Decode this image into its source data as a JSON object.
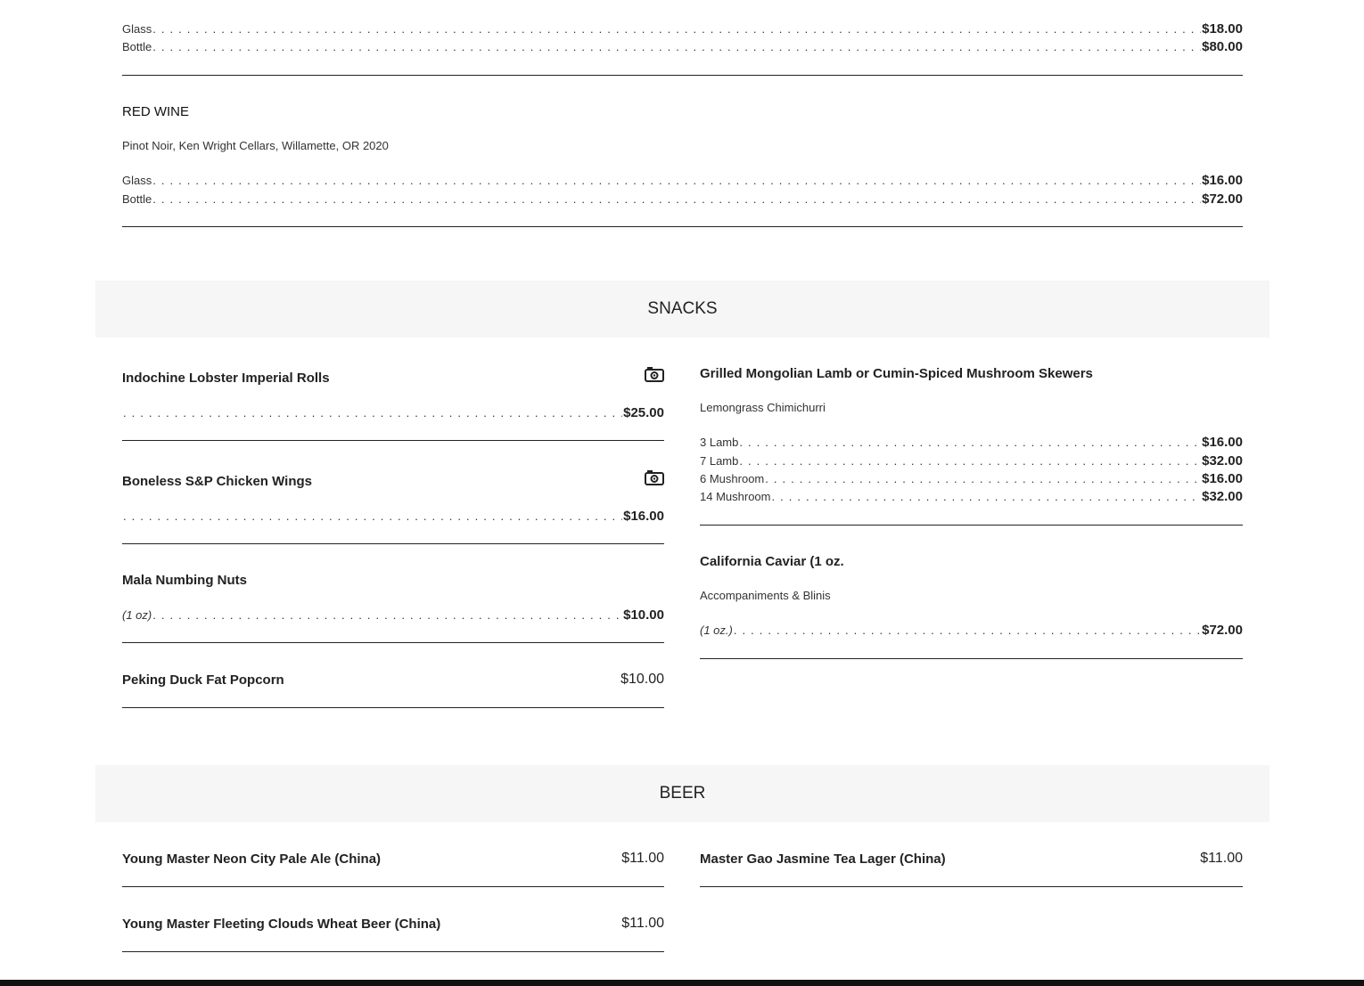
{
  "wine_top": {
    "rows": [
      {
        "label": "Glass",
        "price": "$18.00"
      },
      {
        "label": "Bottle",
        "price": "$80.00"
      }
    ]
  },
  "red_wine": {
    "heading": "RED WINE",
    "description": "Pinot Noir, Ken Wright Cellars, Willamette, OR 2020",
    "rows": [
      {
        "label": "Glass",
        "price": "$16.00"
      },
      {
        "label": "Bottle",
        "price": "$72.00"
      }
    ]
  },
  "snacks": {
    "heading": "SNACKS",
    "left": [
      {
        "name": "Indochine Lobster Imperial Rolls",
        "icon": "camera-icon",
        "price": "$25.00"
      },
      {
        "name": "Boneless S&P Chicken Wings",
        "icon": "camera-icon",
        "price": "$16.00"
      },
      {
        "name": "Mala Numbing Nuts",
        "label": "(1 oz)",
        "price": "$10.00"
      },
      {
        "name": "Peking Duck Fat Popcorn",
        "price": "$10.00"
      }
    ],
    "right": [
      {
        "name": "Grilled Mongolian Lamb or Cumin-Spiced Mushroom Skewers",
        "description": "Lemongrass Chimichurri",
        "rows": [
          {
            "label": "3 Lamb",
            "price": "$16.00"
          },
          {
            "label": "7 Lamb",
            "price": "$32.00"
          },
          {
            "label": "6 Mushroom",
            "price": "$16.00"
          },
          {
            "label": "14 Mushroom",
            "price": "$32.00"
          }
        ]
      },
      {
        "name": "California Caviar (1 oz.",
        "description": "Accompaniments & Blinis",
        "label": "(1 oz.)",
        "price": "$72.00"
      }
    ]
  },
  "beer": {
    "heading": "BEER",
    "items": [
      {
        "name": "Young Master Neon City Pale Ale (China)",
        "price": "$11.00"
      },
      {
        "name": "Master Gao Jasmine Tea Lager (China)",
        "price": "$11.00"
      },
      {
        "name": "Young Master Fleeting Clouds Wheat Beer (China)",
        "price": "$11.00"
      }
    ]
  }
}
